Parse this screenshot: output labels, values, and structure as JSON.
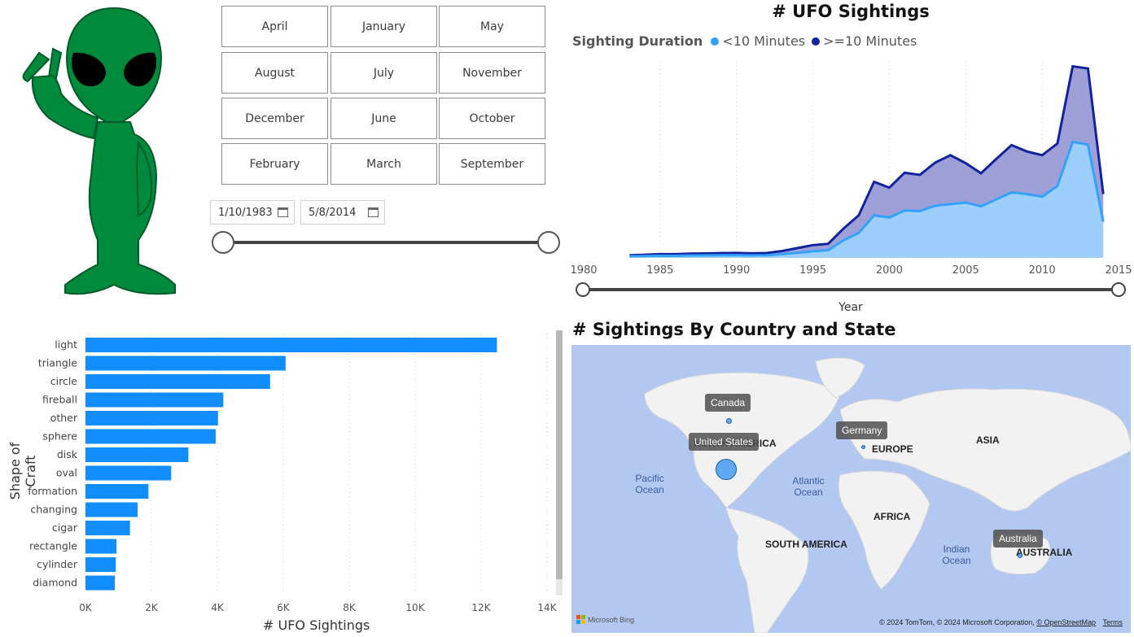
{
  "months": [
    "April",
    "January",
    "May",
    "August",
    "July",
    "November",
    "December",
    "June",
    "October",
    "February",
    "March",
    "September"
  ],
  "date_slicer": {
    "start": "1/10/1983",
    "end": "5/8/2014"
  },
  "area_chart": {
    "title": "# UFO Sightings",
    "legend_title": "Sighting Duration",
    "legend": [
      {
        "label": "<10 Minutes",
        "color": "#33a1fd"
      },
      {
        "label": ">=10 Minutes",
        "color": "#12239e"
      }
    ],
    "xlabel": "Year"
  },
  "chart_data": [
    {
      "type": "area",
      "title": "# UFO Sightings",
      "xlabel": "Year",
      "xlim": [
        1980,
        2015
      ],
      "x_ticks": [
        1980,
        1985,
        1990,
        1995,
        2000,
        2005,
        2010,
        2015
      ],
      "stacked": true,
      "x": [
        1983,
        1984,
        1985,
        1986,
        1987,
        1988,
        1989,
        1990,
        1991,
        1992,
        1993,
        1994,
        1995,
        1996,
        1997,
        1998,
        1999,
        2000,
        2001,
        2002,
        2003,
        2004,
        2005,
        2006,
        2007,
        2008,
        2009,
        2010,
        2011,
        2012,
        2013,
        2014
      ],
      "series": [
        {
          "name": "<10 Minutes",
          "color": "#33a1fd",
          "values": [
            30,
            35,
            40,
            38,
            45,
            48,
            50,
            52,
            48,
            50,
            70,
            95,
            125,
            145,
            330,
            470,
            800,
            760,
            890,
            880,
            980,
            1010,
            1040,
            970,
            1100,
            1230,
            1200,
            1150,
            1350,
            2180,
            2130,
            680
          ]
        },
        {
          "name": ">=10 Minutes",
          "color": "#12239e",
          "values": [
            20,
            25,
            30,
            32,
            35,
            37,
            40,
            42,
            38,
            42,
            60,
            90,
            115,
            120,
            220,
            330,
            630,
            560,
            710,
            680,
            810,
            920,
            740,
            620,
            760,
            890,
            800,
            780,
            800,
            1420,
            1430,
            520
          ]
        }
      ]
    },
    {
      "type": "bar",
      "orientation": "horizontal",
      "xlabel": "# UFO Sightings",
      "ylabel": "Shape of Craft",
      "xlim": [
        0,
        14000
      ],
      "x_ticks": [
        "0K",
        "2K",
        "4K",
        "6K",
        "8K",
        "10K",
        "12K",
        "14K"
      ],
      "categories": [
        "light",
        "triangle",
        "circle",
        "fireball",
        "other",
        "sphere",
        "disk",
        "oval",
        "formation",
        "changing",
        "cigar",
        "rectangle",
        "cylinder",
        "diamond"
      ],
      "values": [
        12480,
        6070,
        5600,
        4180,
        4020,
        3950,
        3120,
        2600,
        1910,
        1580,
        1350,
        940,
        920,
        890
      ],
      "color": "#118dff"
    }
  ],
  "map": {
    "title": "# Sightings By Country and State",
    "countries": [
      {
        "name": "Canada"
      },
      {
        "name": "United States"
      },
      {
        "name": "Germany"
      },
      {
        "name": "Australia"
      }
    ],
    "continents": [
      "NORTH AMERICA",
      "EUROPE",
      "ASIA",
      "AFRICA",
      "SOUTH AMERICA",
      "AUSTRALIA"
    ],
    "oceans": [
      "Pacific Ocean",
      "Atlantic Ocean",
      "Indian Ocean"
    ],
    "logo": "Microsoft Bing",
    "credit": "© 2024 TomTom, © 2024 Microsoft Corporation,",
    "osm": "© OpenStreetMap",
    "terms": "Terms"
  }
}
